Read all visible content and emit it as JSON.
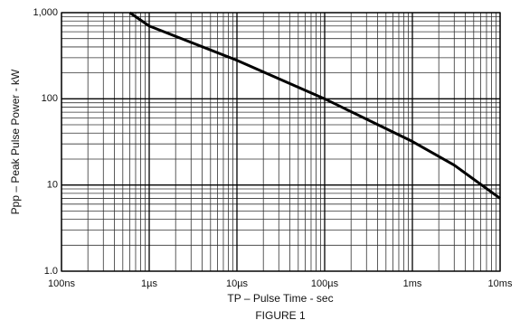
{
  "chart_data": {
    "type": "line",
    "x_label": "TP – Pulse Time - sec",
    "y_label": "Ppp – Peak Pulse Power - kW",
    "caption": "FIGURE 1",
    "x": [
      6e-07,
      1e-06,
      1e-05,
      0.0001,
      0.001,
      0.003,
      0.01
    ],
    "values": [
      1000,
      700,
      280,
      100,
      32,
      17,
      7
    ],
    "color": "#000000",
    "xlog": true,
    "ylog": true,
    "grid": true,
    "minor_grid": true,
    "xlim": [
      1e-07,
      0.01
    ],
    "ylim": [
      1,
      1000
    ],
    "xticks": [
      {
        "value": 1e-07,
        "label": "100ns"
      },
      {
        "value": 1e-06,
        "label": "1µs"
      },
      {
        "value": 1e-05,
        "label": "10µs"
      },
      {
        "value": 0.0001,
        "label": "100µs"
      },
      {
        "value": 0.001,
        "label": "1ms"
      },
      {
        "value": 0.01,
        "label": "10ms"
      }
    ],
    "yticks": [
      {
        "value": 1,
        "label": "1.0"
      },
      10,
      100,
      {
        "value": 1000,
        "label": "1,000"
      }
    ]
  }
}
